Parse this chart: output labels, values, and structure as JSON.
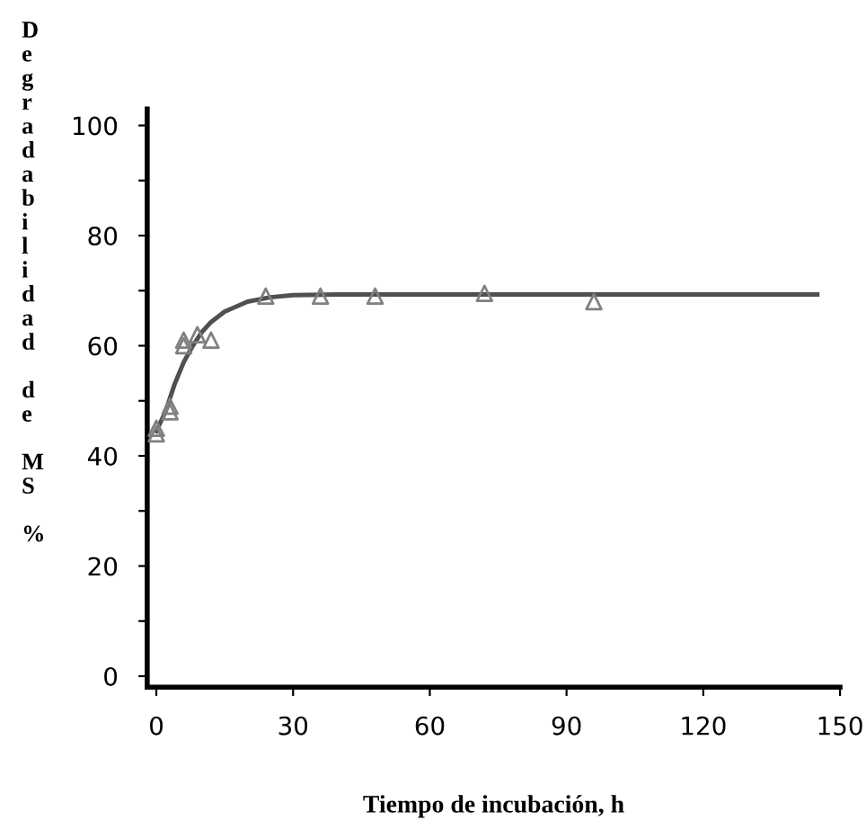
{
  "chart_data": {
    "type": "scatter",
    "xlabel": "Tiempo de incubación, h",
    "ylabel": "Degradabilidad de MS %",
    "xlim": [
      -2,
      150
    ],
    "ylim": [
      -2,
      103
    ],
    "xticks": [
      0,
      30,
      60,
      90,
      120,
      150
    ],
    "yticks": [
      0,
      {
        "value": 10,
        "label": null
      },
      20,
      {
        "value": 30,
        "label": null
      },
      40,
      {
        "value": 50,
        "label": null
      },
      60,
      {
        "value": 70,
        "label": null
      },
      80,
      {
        "value": 90,
        "label": null
      },
      100
    ],
    "grid": false,
    "legend": false,
    "series": [
      {
        "color": "#808080",
        "marker": "triangle",
        "x": [
          0,
          0,
          3,
          3,
          6,
          6,
          9,
          12,
          24,
          36,
          48,
          72,
          96
        ],
        "values": [
          44,
          45,
          48,
          49,
          60,
          61,
          62,
          61,
          69,
          69,
          69,
          69.5,
          68
        ]
      },
      {
        "type": "line",
        "color": "#505050",
        "marker": "none",
        "line_style": "solid",
        "x": [
          0,
          2,
          4,
          6,
          8,
          10,
          12,
          15,
          20,
          25,
          30,
          40,
          145
        ],
        "values": [
          44.5,
          48,
          53,
          57,
          60,
          62.5,
          64.3,
          66.2,
          68,
          68.8,
          69.2,
          69.3,
          69.3
        ]
      }
    ]
  }
}
